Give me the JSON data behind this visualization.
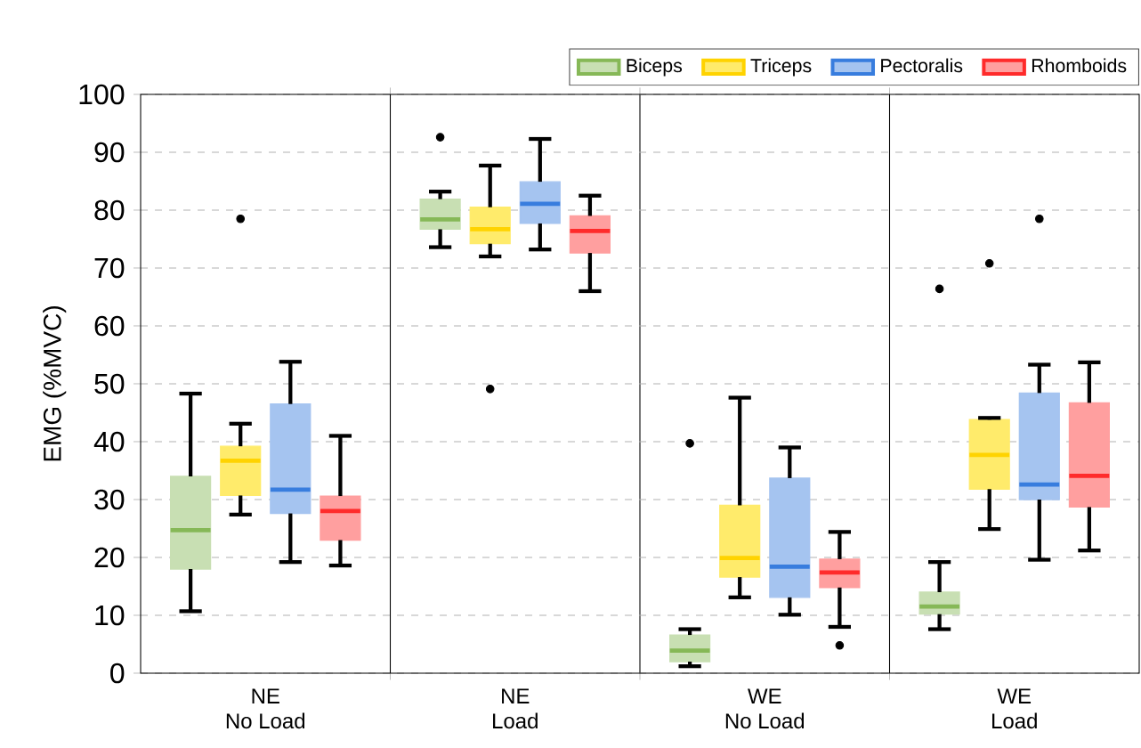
{
  "chart_data": {
    "type": "box",
    "ylabel": "EMG (%MVC)",
    "categories": [
      "NE\nNo Load",
      "NE\nLoad",
      "WE\nNo Load",
      "WE\nLoad"
    ],
    "ylim": [
      0,
      100
    ],
    "yticks": [
      0,
      10,
      20,
      30,
      40,
      50,
      60,
      70,
      80,
      90,
      100
    ],
    "grid": "y",
    "legend": "top right",
    "series": [
      {
        "name": "Biceps",
        "color": "#c8dfb3",
        "boxes": [
          {
            "low": 10.7,
            "q1": 18,
            "median": 24.7,
            "q3": 34,
            "high": 48.3
          },
          {
            "low": 73.6,
            "q1": 76.7,
            "median": 78.4,
            "q3": 81.9,
            "high": 83.2,
            "outliers": [
              92.6
            ]
          },
          {
            "low": 1.2,
            "q1": 2,
            "median": 3.9,
            "q3": 6.6,
            "high": 7.6,
            "outliers": [
              39.7
            ]
          },
          {
            "low": 7.6,
            "q1": 10.2,
            "median": 11.5,
            "q3": 14,
            "high": 19.2,
            "outliers": [
              66.4
            ]
          }
        ]
      },
      {
        "name": "Triceps",
        "color": "#ffeb6b",
        "boxes": [
          {
            "low": 27.4,
            "q1": 30.7,
            "median": 36.7,
            "q3": 39.2,
            "high": 43.1,
            "outliers": [
              78.5
            ]
          },
          {
            "low": 72,
            "q1": 74.2,
            "median": 76.7,
            "q3": 80.5,
            "high": 87.7,
            "outliers": [
              49.1
            ]
          },
          {
            "low": 13.1,
            "q1": 16.6,
            "median": 19.9,
            "q3": 29,
            "high": 47.6
          },
          {
            "low": 24.9,
            "q1": 31.8,
            "median": 37.7,
            "q3": 43.8,
            "high": 44.1,
            "outliers": [
              70.8
            ]
          }
        ]
      },
      {
        "name": "Pectoralis",
        "color": "#a5c4f0",
        "boxes": [
          {
            "low": 19.2,
            "q1": 27.6,
            "median": 31.7,
            "q3": 46.5,
            "high": 53.8
          },
          {
            "low": 73.2,
            "q1": 77.7,
            "median": 81.1,
            "q3": 84.9,
            "high": 92.3
          },
          {
            "low": 10.1,
            "q1": 13.1,
            "median": 18.4,
            "q3": 33.7,
            "high": 39
          },
          {
            "low": 19.6,
            "q1": 30,
            "median": 32.6,
            "q3": 48.4,
            "high": 53.3,
            "outliers": [
              78.5
            ]
          }
        ]
      },
      {
        "name": "Rhomboids",
        "color": "#ff9f9f",
        "boxes": [
          {
            "low": 18.6,
            "q1": 23,
            "median": 28,
            "q3": 30.6,
            "high": 41
          },
          {
            "low": 66,
            "q1": 72.6,
            "median": 76.4,
            "q3": 79,
            "high": 82.5
          },
          {
            "low": 8,
            "q1": 14.8,
            "median": 17.4,
            "q3": 19.7,
            "high": 24.4,
            "outliers": [
              4.8
            ]
          },
          {
            "low": 21.2,
            "q1": 28.7,
            "median": 34.1,
            "q3": 46.7,
            "high": 53.7
          }
        ]
      }
    ]
  }
}
